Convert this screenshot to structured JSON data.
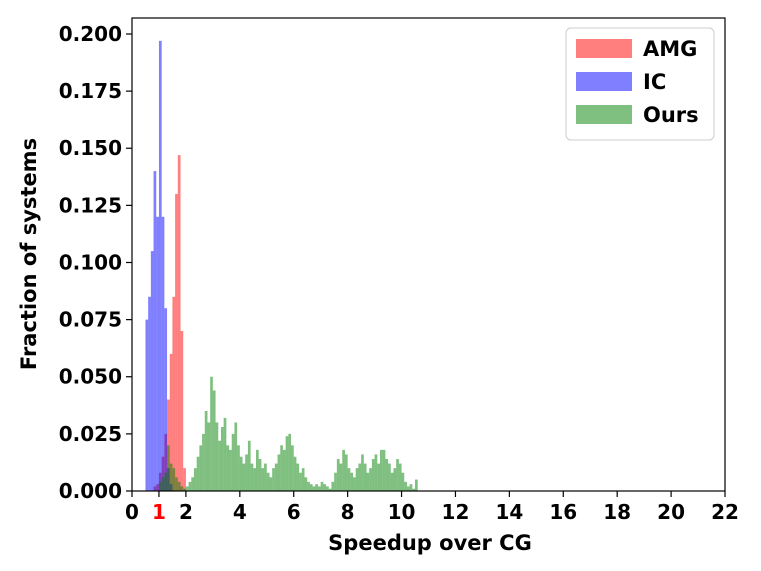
{
  "chart_data": {
    "type": "bar",
    "xlabel": "Speedup over CG",
    "ylabel": "Fraction of systems",
    "xlim": [
      0,
      22
    ],
    "ylim": [
      0,
      0.207
    ],
    "xticks": [
      {
        "value": 0,
        "label": "0",
        "color": "#000000"
      },
      {
        "value": 1,
        "label": "1",
        "color": "#ff0000"
      },
      {
        "value": 2,
        "label": "2",
        "color": "#000000"
      },
      {
        "value": 4,
        "label": "4",
        "color": "#000000"
      },
      {
        "value": 6,
        "label": "6",
        "color": "#000000"
      },
      {
        "value": 8,
        "label": "8",
        "color": "#000000"
      },
      {
        "value": 10,
        "label": "10",
        "color": "#000000"
      },
      {
        "value": 12,
        "label": "12",
        "color": "#000000"
      },
      {
        "value": 14,
        "label": "14",
        "color": "#000000"
      },
      {
        "value": 16,
        "label": "16",
        "color": "#000000"
      },
      {
        "value": 18,
        "label": "18",
        "color": "#000000"
      },
      {
        "value": 20,
        "label": "20",
        "color": "#000000"
      },
      {
        "value": 22,
        "label": "22",
        "color": "#000000"
      }
    ],
    "yticks": [
      {
        "value": 0.0,
        "label": "0.000"
      },
      {
        "value": 0.025,
        "label": "0.025"
      },
      {
        "value": 0.05,
        "label": "0.050"
      },
      {
        "value": 0.075,
        "label": "0.075"
      },
      {
        "value": 0.1,
        "label": "0.100"
      },
      {
        "value": 0.125,
        "label": "0.125"
      },
      {
        "value": 0.15,
        "label": "0.150"
      },
      {
        "value": 0.175,
        "label": "0.175"
      },
      {
        "value": 0.2,
        "label": "0.200"
      }
    ],
    "legend_position": "top-right",
    "series": [
      {
        "name": "AMG",
        "color": "#ff0000",
        "opacity": 0.5,
        "bin_start": 0.8,
        "bin_width": 0.1,
        "values": [
          0.002,
          0.003,
          0.008,
          0.015,
          0.025,
          0.04,
          0.06,
          0.085,
          0.13,
          0.147,
          0.07,
          0.01
        ]
      },
      {
        "name": "IC",
        "color": "#0000ff",
        "opacity": 0.5,
        "bin_start": 0.5,
        "bin_width": 0.1,
        "values": [
          0.075,
          0.085,
          0.105,
          0.14,
          0.12,
          0.197,
          0.12,
          0.08,
          0.01,
          0.003
        ]
      },
      {
        "name": "Ours",
        "color": "#008000",
        "opacity": 0.5,
        "bin_start": 1.0,
        "bin_width": 0.1,
        "values": [
          0.004,
          0.006,
          0.008,
          0.02,
          0.012,
          0.01,
          0.006,
          0.004,
          0.002,
          0.001,
          0.002,
          0.004,
          0.006,
          0.01,
          0.015,
          0.02,
          0.025,
          0.035,
          0.03,
          0.05,
          0.044,
          0.03,
          0.022,
          0.028,
          0.032,
          0.02,
          0.018,
          0.025,
          0.03,
          0.02,
          0.015,
          0.012,
          0.016,
          0.022,
          0.012,
          0.01,
          0.018,
          0.014,
          0.01,
          0.012,
          0.008,
          0.006,
          0.01,
          0.012,
          0.016,
          0.02,
          0.018,
          0.024,
          0.025,
          0.02,
          0.015,
          0.012,
          0.008,
          0.01,
          0.006,
          0.004,
          0.003,
          0.002,
          0.003,
          0.002,
          0.004,
          0.003,
          0.002,
          0.001,
          0.004,
          0.008,
          0.014,
          0.012,
          0.018,
          0.016,
          0.01,
          0.008,
          0.006,
          0.01,
          0.012,
          0.016,
          0.012,
          0.008,
          0.01,
          0.014,
          0.016,
          0.012,
          0.018,
          0.018,
          0.014,
          0.012,
          0.008,
          0.01,
          0.014,
          0.012,
          0.008,
          0.004,
          0.002,
          0.003,
          0.001,
          0.005
        ]
      }
    ]
  }
}
